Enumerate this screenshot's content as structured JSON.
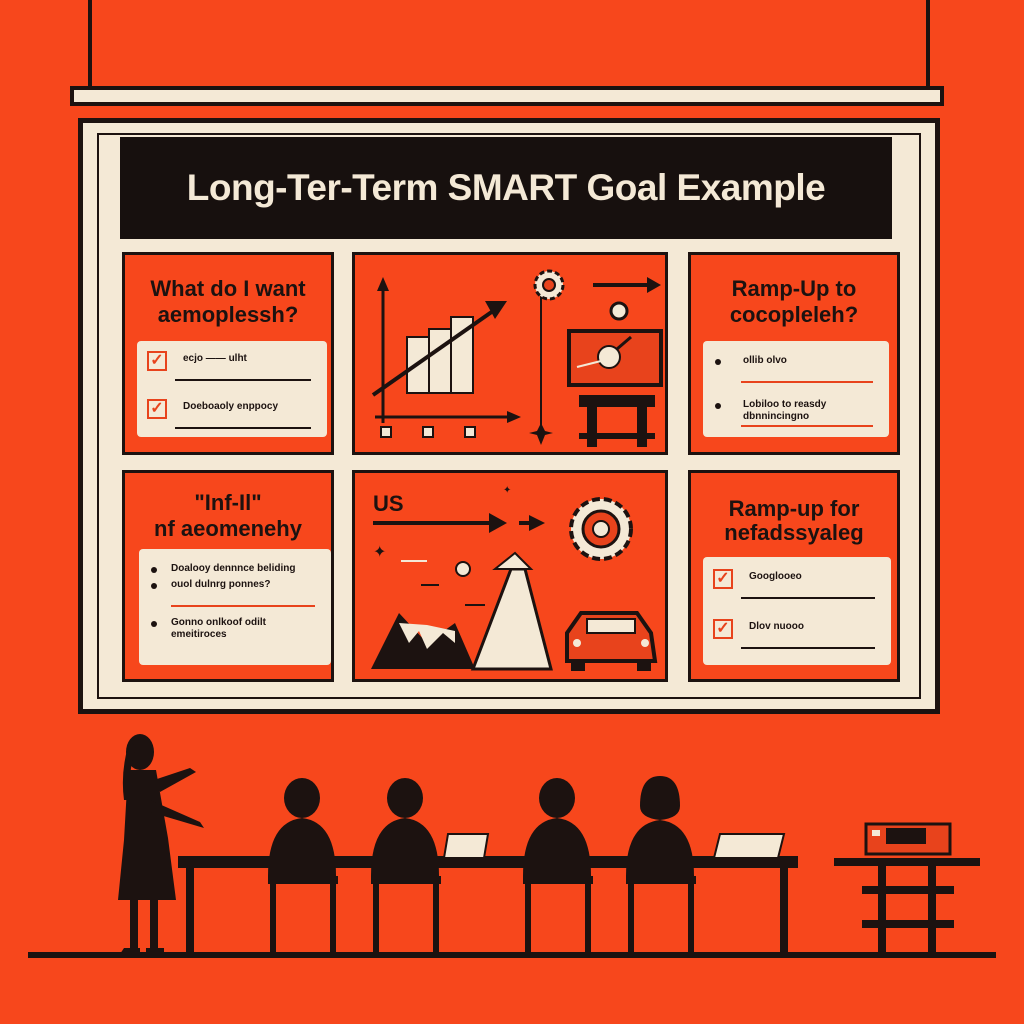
{
  "title": "Long-Ter-Term SMART Goal Example",
  "panels": {
    "top_left": {
      "heading_line1": "What do I want",
      "heading_line2": "aemoplessh?",
      "items": [
        {
          "marker": "check",
          "text": "ecjo —— ulht"
        },
        {
          "marker": "check",
          "text": "Doeboaoly enppocy"
        }
      ]
    },
    "top_right": {
      "heading_line1": "Ramp-Up to",
      "heading_line2": "cocopleleh?",
      "items": [
        {
          "marker": "dot",
          "text": "ollib olvo"
        },
        {
          "marker": "dot",
          "text": "Lobiloo to reasdy dbnnincingno"
        }
      ]
    },
    "bottom_left": {
      "heading_line1": "\"Inf-Il\"",
      "heading_line2": "nf aeomenehy",
      "items": [
        {
          "marker": "dot",
          "text": "Doalooy dennnce beliding"
        },
        {
          "marker": "dot",
          "text": "ouol dulnrg ponnes?"
        },
        {
          "marker": "dot",
          "text": "Gonno onlkoof odilt emeitiroces"
        }
      ]
    },
    "bottom_middle": {
      "label": "US"
    },
    "bottom_right": {
      "heading_line1": "Ramp-up for",
      "heading_line2": "nefadssyaleg",
      "items": [
        {
          "marker": "check",
          "text": "Googlooeo"
        },
        {
          "marker": "check",
          "text": "Dlov nuooo"
        }
      ]
    }
  },
  "colors": {
    "background": "#f7471c",
    "cream": "#f4e9d6",
    "ink": "#1c1210",
    "accent": "#e8431c"
  }
}
